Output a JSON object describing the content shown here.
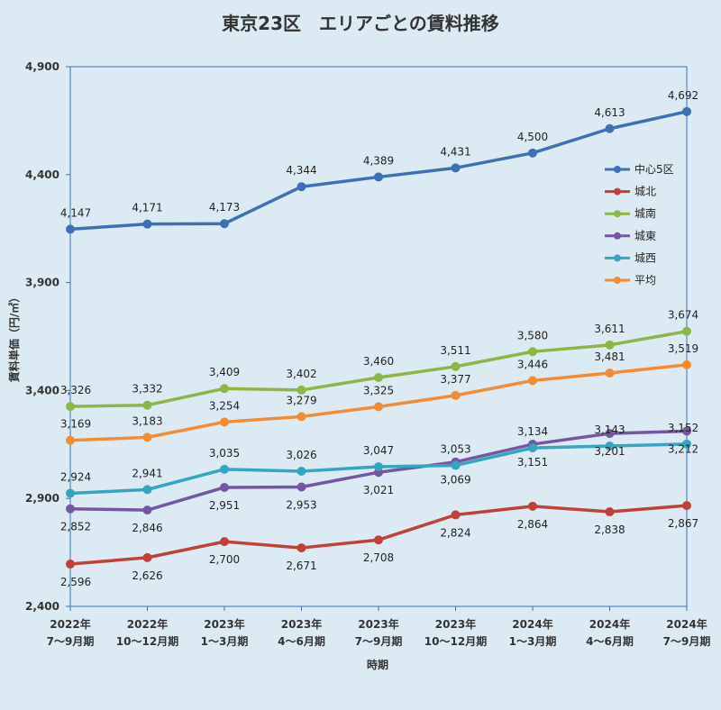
{
  "chart_data": {
    "type": "line",
    "title": "東京23区　エリアごとの賃料推移",
    "xlabel": "時期",
    "ylabel": "賃料単価（円/㎡）",
    "ylim": [
      2400,
      4900
    ],
    "yticks": [
      "2,400",
      "2,900",
      "3,400",
      "3,900",
      "4,400",
      "4,900"
    ],
    "categories": [
      [
        "2022年",
        "7〜9月期"
      ],
      [
        "2022年",
        "10〜12月期"
      ],
      [
        "2023年",
        "1〜3月期"
      ],
      [
        "2023年",
        "4〜6月期"
      ],
      [
        "2023年",
        "7〜9月期"
      ],
      [
        "2023年",
        "10〜12月期"
      ],
      [
        "2024年",
        "1〜3月期"
      ],
      [
        "2024年",
        "4〜6月期"
      ],
      [
        "2024年",
        "7〜9月期"
      ]
    ],
    "legend_position": "right",
    "series": [
      {
        "name": "中心5区",
        "color": "#3e70b3",
        "values": [
          4147,
          4171,
          4173,
          4344,
          4389,
          4431,
          4500,
          4613,
          4692
        ]
      },
      {
        "name": "城北",
        "color": "#c0403a",
        "values": [
          2596,
          2626,
          2700,
          2671,
          2708,
          2824,
          2864,
          2838,
          2867
        ]
      },
      {
        "name": "城南",
        "color": "#8cb646",
        "values": [
          3326,
          3332,
          3409,
          3402,
          3460,
          3511,
          3580,
          3611,
          3674
        ]
      },
      {
        "name": "城東",
        "color": "#7556a0",
        "values": [
          2852,
          2846,
          2951,
          2953,
          3021,
          3069,
          3151,
          3201,
          3212
        ]
      },
      {
        "name": "城西",
        "color": "#35a5c0",
        "values": [
          2924,
          2941,
          3035,
          3026,
          3047,
          3053,
          3134,
          3143,
          3152
        ]
      },
      {
        "name": "平均",
        "color": "#f28c35",
        "values": [
          3169,
          3183,
          3254,
          3279,
          3325,
          3377,
          3446,
          3481,
          3519
        ]
      }
    ]
  }
}
